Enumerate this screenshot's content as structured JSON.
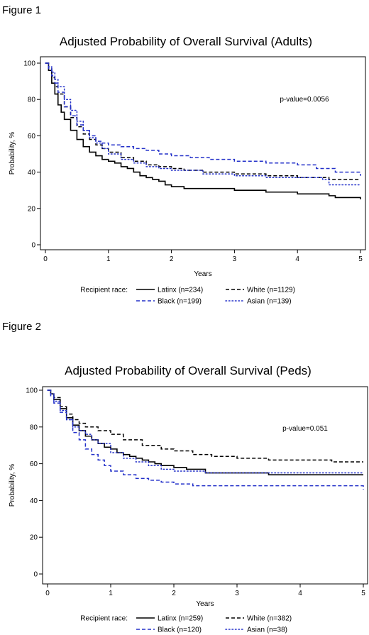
{
  "figures": [
    {
      "label": "Figure 1"
    },
    {
      "label": "Figure 2"
    }
  ],
  "chart_data": [
    {
      "type": "line",
      "step": true,
      "title": "Adjusted Probability of Overall Survival (Adults)",
      "xlabel": "Years",
      "ylabel": "Probability, %",
      "xlim": [
        0,
        5
      ],
      "ylim": [
        0,
        100
      ],
      "xticks": [
        "0",
        "1",
        "2",
        "3",
        "4",
        "5"
      ],
      "yticks": [
        "0",
        "20",
        "40",
        "60",
        "80",
        "100"
      ],
      "grid": false,
      "annotation": "p-value=0.0056",
      "legend_title": "Recipient race:",
      "legend_position": "bottom",
      "series": [
        {
          "name": "Latinx (n=234)",
          "color": "#000000",
          "style": "solid",
          "x": [
            0,
            0.05,
            0.1,
            0.15,
            0.2,
            0.25,
            0.3,
            0.4,
            0.5,
            0.6,
            0.7,
            0.8,
            0.9,
            1.0,
            1.1,
            1.2,
            1.3,
            1.4,
            1.5,
            1.6,
            1.7,
            1.8,
            1.9,
            2.0,
            2.2,
            2.5,
            3.0,
            3.5,
            4.0,
            4.5,
            4.6,
            5.0
          ],
          "y": [
            100,
            96,
            89,
            83,
            77,
            73,
            69,
            63,
            58,
            54,
            51,
            49,
            47,
            46,
            45,
            43,
            42,
            40,
            38,
            37,
            36,
            35,
            33,
            32,
            31,
            31,
            30,
            29,
            28,
            27,
            26,
            25
          ]
        },
        {
          "name": "White (n=1129)",
          "color": "#000000",
          "style": "dashed",
          "x": [
            0,
            0.05,
            0.1,
            0.15,
            0.2,
            0.3,
            0.4,
            0.5,
            0.6,
            0.7,
            0.8,
            0.9,
            1.0,
            1.2,
            1.4,
            1.6,
            1.8,
            2.0,
            2.2,
            2.5,
            3.0,
            3.5,
            4.0,
            4.5,
            5.0
          ],
          "y": [
            100,
            97,
            92,
            87,
            83,
            76,
            70,
            65,
            61,
            58,
            55,
            53,
            51,
            48,
            46,
            44,
            43,
            42,
            41,
            40,
            39,
            38,
            37,
            36,
            36
          ]
        },
        {
          "name": "Black (n=199)",
          "color": "#2330c9",
          "style": "dashed",
          "x": [
            0,
            0.05,
            0.1,
            0.15,
            0.2,
            0.3,
            0.4,
            0.5,
            0.6,
            0.7,
            0.8,
            0.9,
            1.0,
            1.2,
            1.4,
            1.6,
            1.8,
            2.0,
            2.3,
            2.6,
            3.0,
            3.5,
            4.0,
            4.3,
            4.6,
            5.0
          ],
          "y": [
            100,
            97,
            93,
            89,
            84,
            76,
            71,
            66,
            63,
            60,
            57,
            56,
            55,
            54,
            53,
            52,
            50,
            49,
            48,
            47,
            46,
            45,
            44,
            42,
            40,
            38
          ]
        },
        {
          "name": "Asian (n=139)",
          "color": "#2330c9",
          "style": "dotted",
          "x": [
            0,
            0.05,
            0.1,
            0.15,
            0.2,
            0.3,
            0.4,
            0.5,
            0.6,
            0.7,
            0.8,
            0.9,
            1.0,
            1.2,
            1.4,
            1.6,
            1.8,
            2.0,
            2.5,
            3.0,
            3.5,
            4.0,
            4.4,
            4.5,
            5.0
          ],
          "y": [
            100,
            98,
            95,
            91,
            87,
            80,
            74,
            68,
            63,
            59,
            56,
            53,
            50,
            47,
            45,
            43,
            42,
            41,
            39,
            38,
            37,
            37,
            36,
            33,
            33
          ]
        }
      ]
    },
    {
      "type": "line",
      "step": true,
      "title": "Adjusted Probability of Overall Survival (Peds)",
      "xlabel": "Years",
      "ylabel": "Probability, %",
      "xlim": [
        0,
        5
      ],
      "ylim": [
        0,
        100
      ],
      "xticks": [
        "0",
        "1",
        "2",
        "3",
        "4",
        "5"
      ],
      "yticks": [
        "0",
        "20",
        "40",
        "60",
        "80",
        "100"
      ],
      "grid": false,
      "annotation": "p-value=0.051",
      "legend_title": "Recipient race:",
      "legend_position": "bottom",
      "series": [
        {
          "name": "Latinx (n=259)",
          "color": "#000000",
          "style": "solid",
          "x": [
            0,
            0.05,
            0.1,
            0.2,
            0.3,
            0.4,
            0.5,
            0.6,
            0.7,
            0.8,
            0.9,
            1.0,
            1.1,
            1.2,
            1.3,
            1.4,
            1.5,
            1.6,
            1.7,
            1.8,
            2.0,
            2.2,
            2.5,
            3.0,
            3.5,
            4.0,
            5.0
          ],
          "y": [
            100,
            98,
            95,
            90,
            85,
            81,
            78,
            75,
            73,
            71,
            69,
            68,
            66,
            65,
            64,
            63,
            62,
            61,
            60,
            59,
            58,
            57,
            55,
            55,
            54,
            54,
            54
          ]
        },
        {
          "name": "White (n=382)",
          "color": "#000000",
          "style": "dashed",
          "x": [
            0,
            0.05,
            0.1,
            0.2,
            0.3,
            0.4,
            0.5,
            0.6,
            0.8,
            1.0,
            1.2,
            1.5,
            1.8,
            2.0,
            2.3,
            2.6,
            3.0,
            3.5,
            4.0,
            4.5,
            5.0
          ],
          "y": [
            100,
            98,
            96,
            91,
            87,
            84,
            82,
            80,
            78,
            76,
            73,
            70,
            68,
            67,
            65,
            64,
            63,
            62,
            62,
            61,
            61
          ]
        },
        {
          "name": "Black (n=120)",
          "color": "#2330c9",
          "style": "dashed",
          "x": [
            0,
            0.05,
            0.1,
            0.2,
            0.3,
            0.4,
            0.5,
            0.6,
            0.7,
            0.8,
            0.9,
            1.0,
            1.2,
            1.4,
            1.6,
            1.8,
            2.0,
            2.3,
            3.0,
            4.0,
            4.8,
            5.0
          ],
          "y": [
            100,
            97,
            93,
            88,
            84,
            77,
            73,
            68,
            65,
            62,
            59,
            56,
            54,
            52,
            51,
            50,
            49,
            48,
            48,
            48,
            48,
            46
          ]
        },
        {
          "name": "Asian (n=38)",
          "color": "#2330c9",
          "style": "dotted",
          "x": [
            0,
            0.05,
            0.1,
            0.2,
            0.3,
            0.4,
            0.5,
            0.6,
            0.7,
            0.8,
            1.0,
            1.2,
            1.4,
            1.6,
            1.8,
            2.0,
            2.5,
            3.0,
            4.0,
            5.0
          ],
          "y": [
            100,
            98,
            94,
            89,
            84,
            80,
            78,
            76,
            73,
            71,
            66,
            63,
            61,
            59,
            57,
            56,
            55,
            55,
            55,
            55
          ]
        }
      ]
    }
  ]
}
